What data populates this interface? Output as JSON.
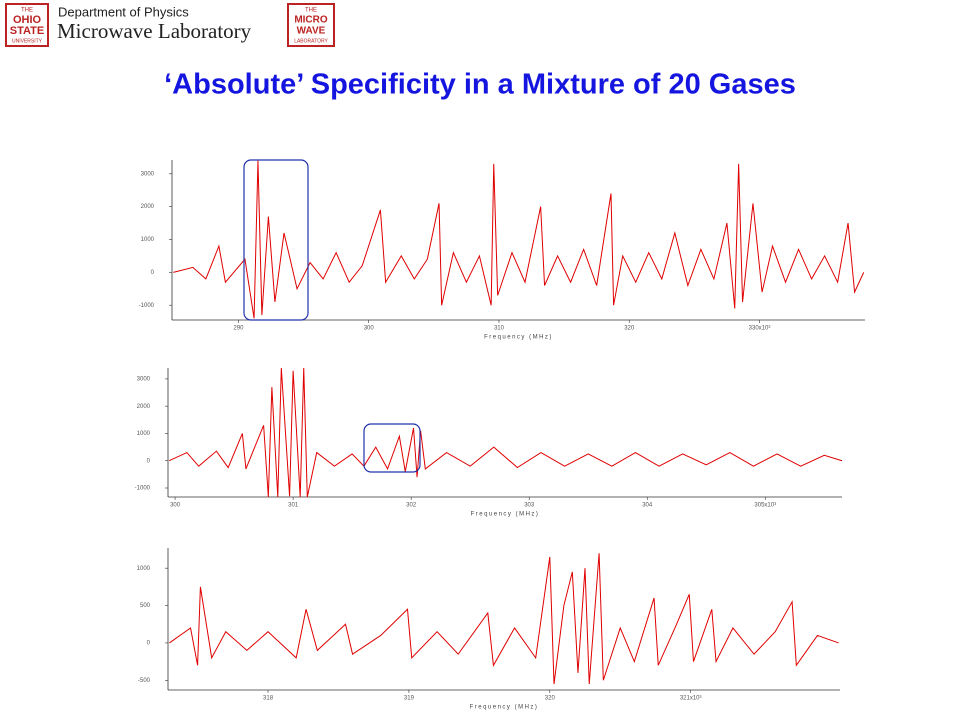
{
  "header": {
    "department": "Department of Physics",
    "lab": "Microwave Laboratory",
    "left_logo": [
      "THE",
      "OHIO",
      "STATE",
      "UNIVERSITY"
    ],
    "right_logo": [
      "THE",
      "MICRO",
      "WAVE",
      "LABORATORY"
    ]
  },
  "title": "‘Absolute’ Specificity in a Mixture of 20 Gases",
  "chart_data": [
    {
      "type": "line",
      "x_label": "Frequency (MHz)",
      "color": "#e00000",
      "xlim": [
        284.9,
        338.1
      ],
      "ylim": [
        -1450,
        3420
      ],
      "xticks": [
        290,
        300,
        310,
        320,
        {
          "value": 330,
          "label": "330x10³"
        }
      ],
      "yticks": [
        3000,
        2000,
        1000,
        0,
        -1000
      ],
      "x": [
        285,
        286.5,
        287.5,
        288.5,
        289,
        290.5,
        291.2,
        291.5,
        291.8,
        292.3,
        292.8,
        293.5,
        294.5,
        295.5,
        296.5,
        297.5,
        298.5,
        299.5,
        300.9,
        301.3,
        302.5,
        303.5,
        304.5,
        305.4,
        305.6,
        306.5,
        307.5,
        308.5,
        309.4,
        309.6,
        309.9,
        311,
        312,
        313.2,
        313.5,
        314.5,
        315.5,
        316.5,
        317.5,
        318.6,
        318.8,
        319.5,
        320.5,
        321.5,
        322.5,
        323.5,
        324.5,
        325.5,
        326.5,
        327.5,
        328.1,
        328.4,
        328.7,
        329.5,
        330.2,
        331,
        332,
        333,
        334,
        335,
        336,
        336.8,
        337.3,
        338
      ],
      "values": [
        0,
        150,
        -200,
        800,
        -300,
        400,
        -1400,
        3400,
        -1300,
        1700,
        -900,
        1200,
        -500,
        300,
        -200,
        600,
        -300,
        200,
        1900,
        -300,
        500,
        -200,
        400,
        2100,
        -1000,
        600,
        -300,
        500,
        -1000,
        3300,
        -700,
        600,
        -300,
        2000,
        -400,
        500,
        -300,
        700,
        -400,
        2400,
        -1000,
        500,
        -300,
        600,
        -200,
        1200,
        -400,
        700,
        -200,
        1500,
        -1100,
        3300,
        -900,
        2100,
        -600,
        800,
        -300,
        700,
        -200,
        500,
        -300,
        1500,
        -600,
        0
      ]
    },
    {
      "type": "line",
      "x_label": "Frequency (MHz)",
      "color": "#e00000",
      "xlim": [
        299.94,
        305.65
      ],
      "ylim": [
        -1330,
        3400
      ],
      "xticks": [
        300,
        301,
        302,
        303,
        304,
        {
          "value": 305,
          "label": "305x10³"
        }
      ],
      "yticks": [
        3000,
        2000,
        1000,
        0,
        -1000
      ],
      "x": [
        299.95,
        300.1,
        300.2,
        300.35,
        300.45,
        300.57,
        300.6,
        300.75,
        300.79,
        300.82,
        300.87,
        300.9,
        300.97,
        301.0,
        301.06,
        301.09,
        301.12,
        301.2,
        301.35,
        301.5,
        301.6,
        301.7,
        301.8,
        301.9,
        301.95,
        302.02,
        302.05,
        302.08,
        302.12,
        302.3,
        302.5,
        302.7,
        302.9,
        303.1,
        303.3,
        303.5,
        303.7,
        303.9,
        304.1,
        304.3,
        304.5,
        304.7,
        304.9,
        305.1,
        305.3,
        305.5,
        305.65
      ],
      "values": [
        0,
        300,
        -200,
        350,
        -250,
        1000,
        -300,
        1300,
        -1330,
        2700,
        -1330,
        3400,
        -1300,
        3300,
        -1330,
        3400,
        -1330,
        300,
        -200,
        250,
        -200,
        500,
        -300,
        900,
        -400,
        1200,
        -600,
        1100,
        -300,
        300,
        -200,
        500,
        -250,
        300,
        -200,
        250,
        -200,
        300,
        -200,
        250,
        -150,
        300,
        -200,
        250,
        -200,
        200,
        0
      ]
    },
    {
      "type": "line",
      "x_label": "Frequency (MHz)",
      "color": "#e00000",
      "xlim": [
        317.29,
        322.06
      ],
      "ylim": [
        -630,
        1270
      ],
      "xticks": [
        318,
        319,
        320,
        {
          "value": 321,
          "label": "321x10³"
        }
      ],
      "yticks": [
        1000,
        500,
        0,
        -500
      ],
      "x": [
        317.3,
        317.45,
        317.5,
        317.52,
        317.6,
        317.7,
        317.85,
        318.0,
        318.2,
        318.27,
        318.35,
        318.55,
        318.6,
        318.8,
        318.99,
        319.02,
        319.2,
        319.35,
        319.56,
        319.6,
        319.75,
        319.9,
        320.0,
        320.03,
        320.1,
        320.16,
        320.2,
        320.25,
        320.28,
        320.35,
        320.38,
        320.5,
        320.6,
        320.74,
        320.77,
        320.9,
        320.99,
        321.02,
        321.15,
        321.18,
        321.3,
        321.45,
        321.6,
        321.72,
        321.75,
        321.9,
        322.05
      ],
      "values": [
        0,
        200,
        -300,
        750,
        -200,
        150,
        -100,
        150,
        -200,
        450,
        -100,
        250,
        -150,
        100,
        450,
        -200,
        150,
        -150,
        400,
        -300,
        200,
        -200,
        1150,
        -550,
        500,
        950,
        -400,
        1000,
        -550,
        1200,
        -500,
        200,
        -250,
        600,
        -300,
        250,
        650,
        -250,
        450,
        -250,
        200,
        -150,
        150,
        550,
        -300,
        100,
        0
      ]
    }
  ]
}
